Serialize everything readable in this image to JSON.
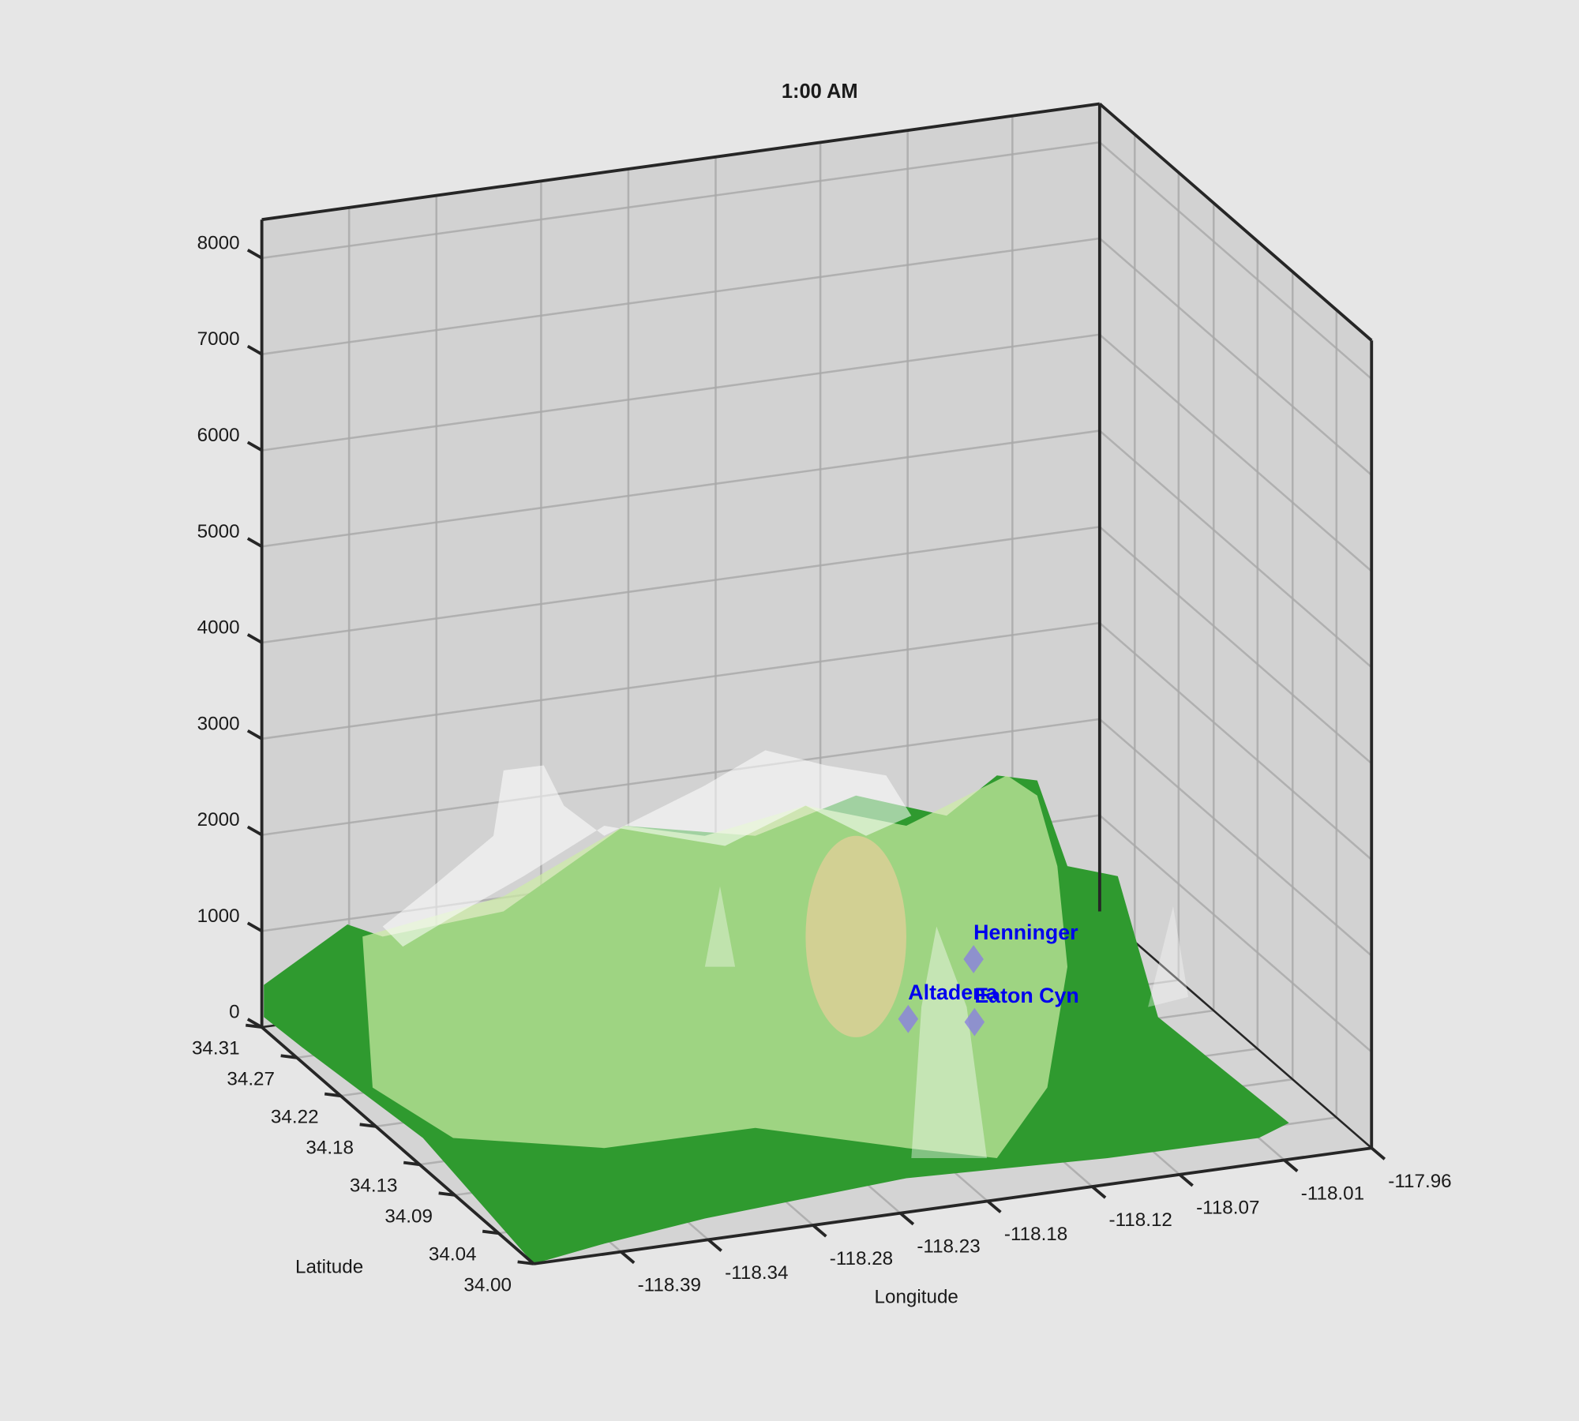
{
  "chart_data": {
    "type": "surface3d",
    "title": "1:00 AM",
    "xlabel": "Longitude",
    "ylabel": "Latitude",
    "xlim": [
      -118.44,
      -117.96
    ],
    "ylim": [
      34.0,
      34.31
    ],
    "zlim": [
      0,
      8400
    ],
    "xticks": [
      -118.39,
      -118.34,
      -118.28,
      -118.23,
      -118.18,
      -118.12,
      -118.07,
      -118.01,
      -117.96
    ],
    "yticks": [
      {
        "value": 34.0,
        "label": "34.00"
      },
      34.04,
      34.09,
      34.13,
      34.18,
      34.22,
      34.27,
      34.31
    ],
    "zticks": [
      0,
      1000,
      2000,
      3000,
      4000,
      5000,
      6000,
      7000,
      8000
    ],
    "grid": true,
    "stations": {
      "names": [
        "Henninger",
        "Altadena",
        "Eaton Cyn"
      ],
      "lon": [
        -118.085,
        -118.13,
        -118.094
      ],
      "lat": [
        34.205,
        34.19,
        34.186
      ],
      "z": [
        650,
        260,
        170
      ],
      "color": "#8a7fe0",
      "label_color": "#0000ee"
    }
  }
}
